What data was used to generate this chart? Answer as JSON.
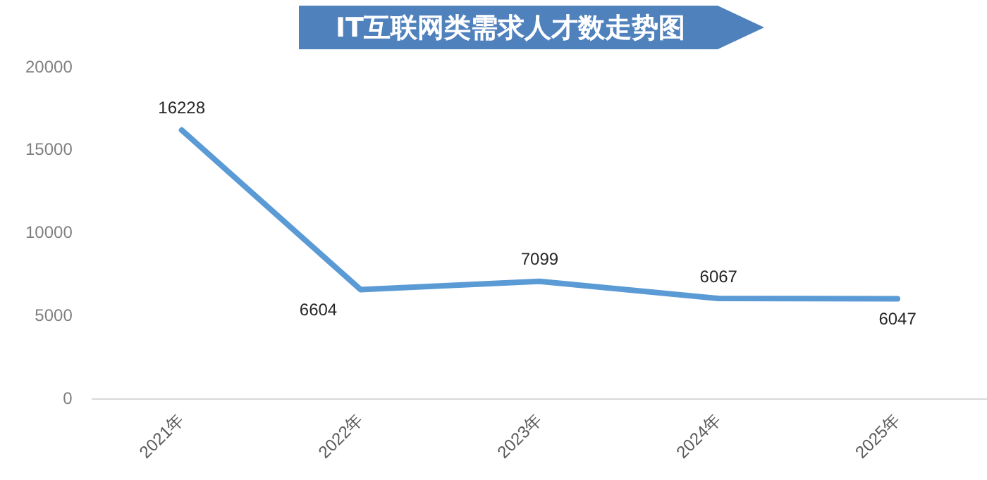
{
  "chart_data": {
    "type": "line",
    "title": "IT互联网类需求人才数走势图",
    "categories": [
      "2021年",
      "2022年",
      "2023年",
      "2024年",
      "2025年"
    ],
    "series": [
      {
        "color": "#5b9bd5",
        "values": [
          16228,
          6604,
          7099,
          6067,
          6047
        ]
      }
    ],
    "ylim": [
      0,
      20000
    ],
    "yticks": [
      0,
      5000,
      10000,
      15000,
      20000
    ],
    "grid": false,
    "legend": false,
    "marker": "none",
    "line_style": "solid",
    "data_labels": true
  }
}
